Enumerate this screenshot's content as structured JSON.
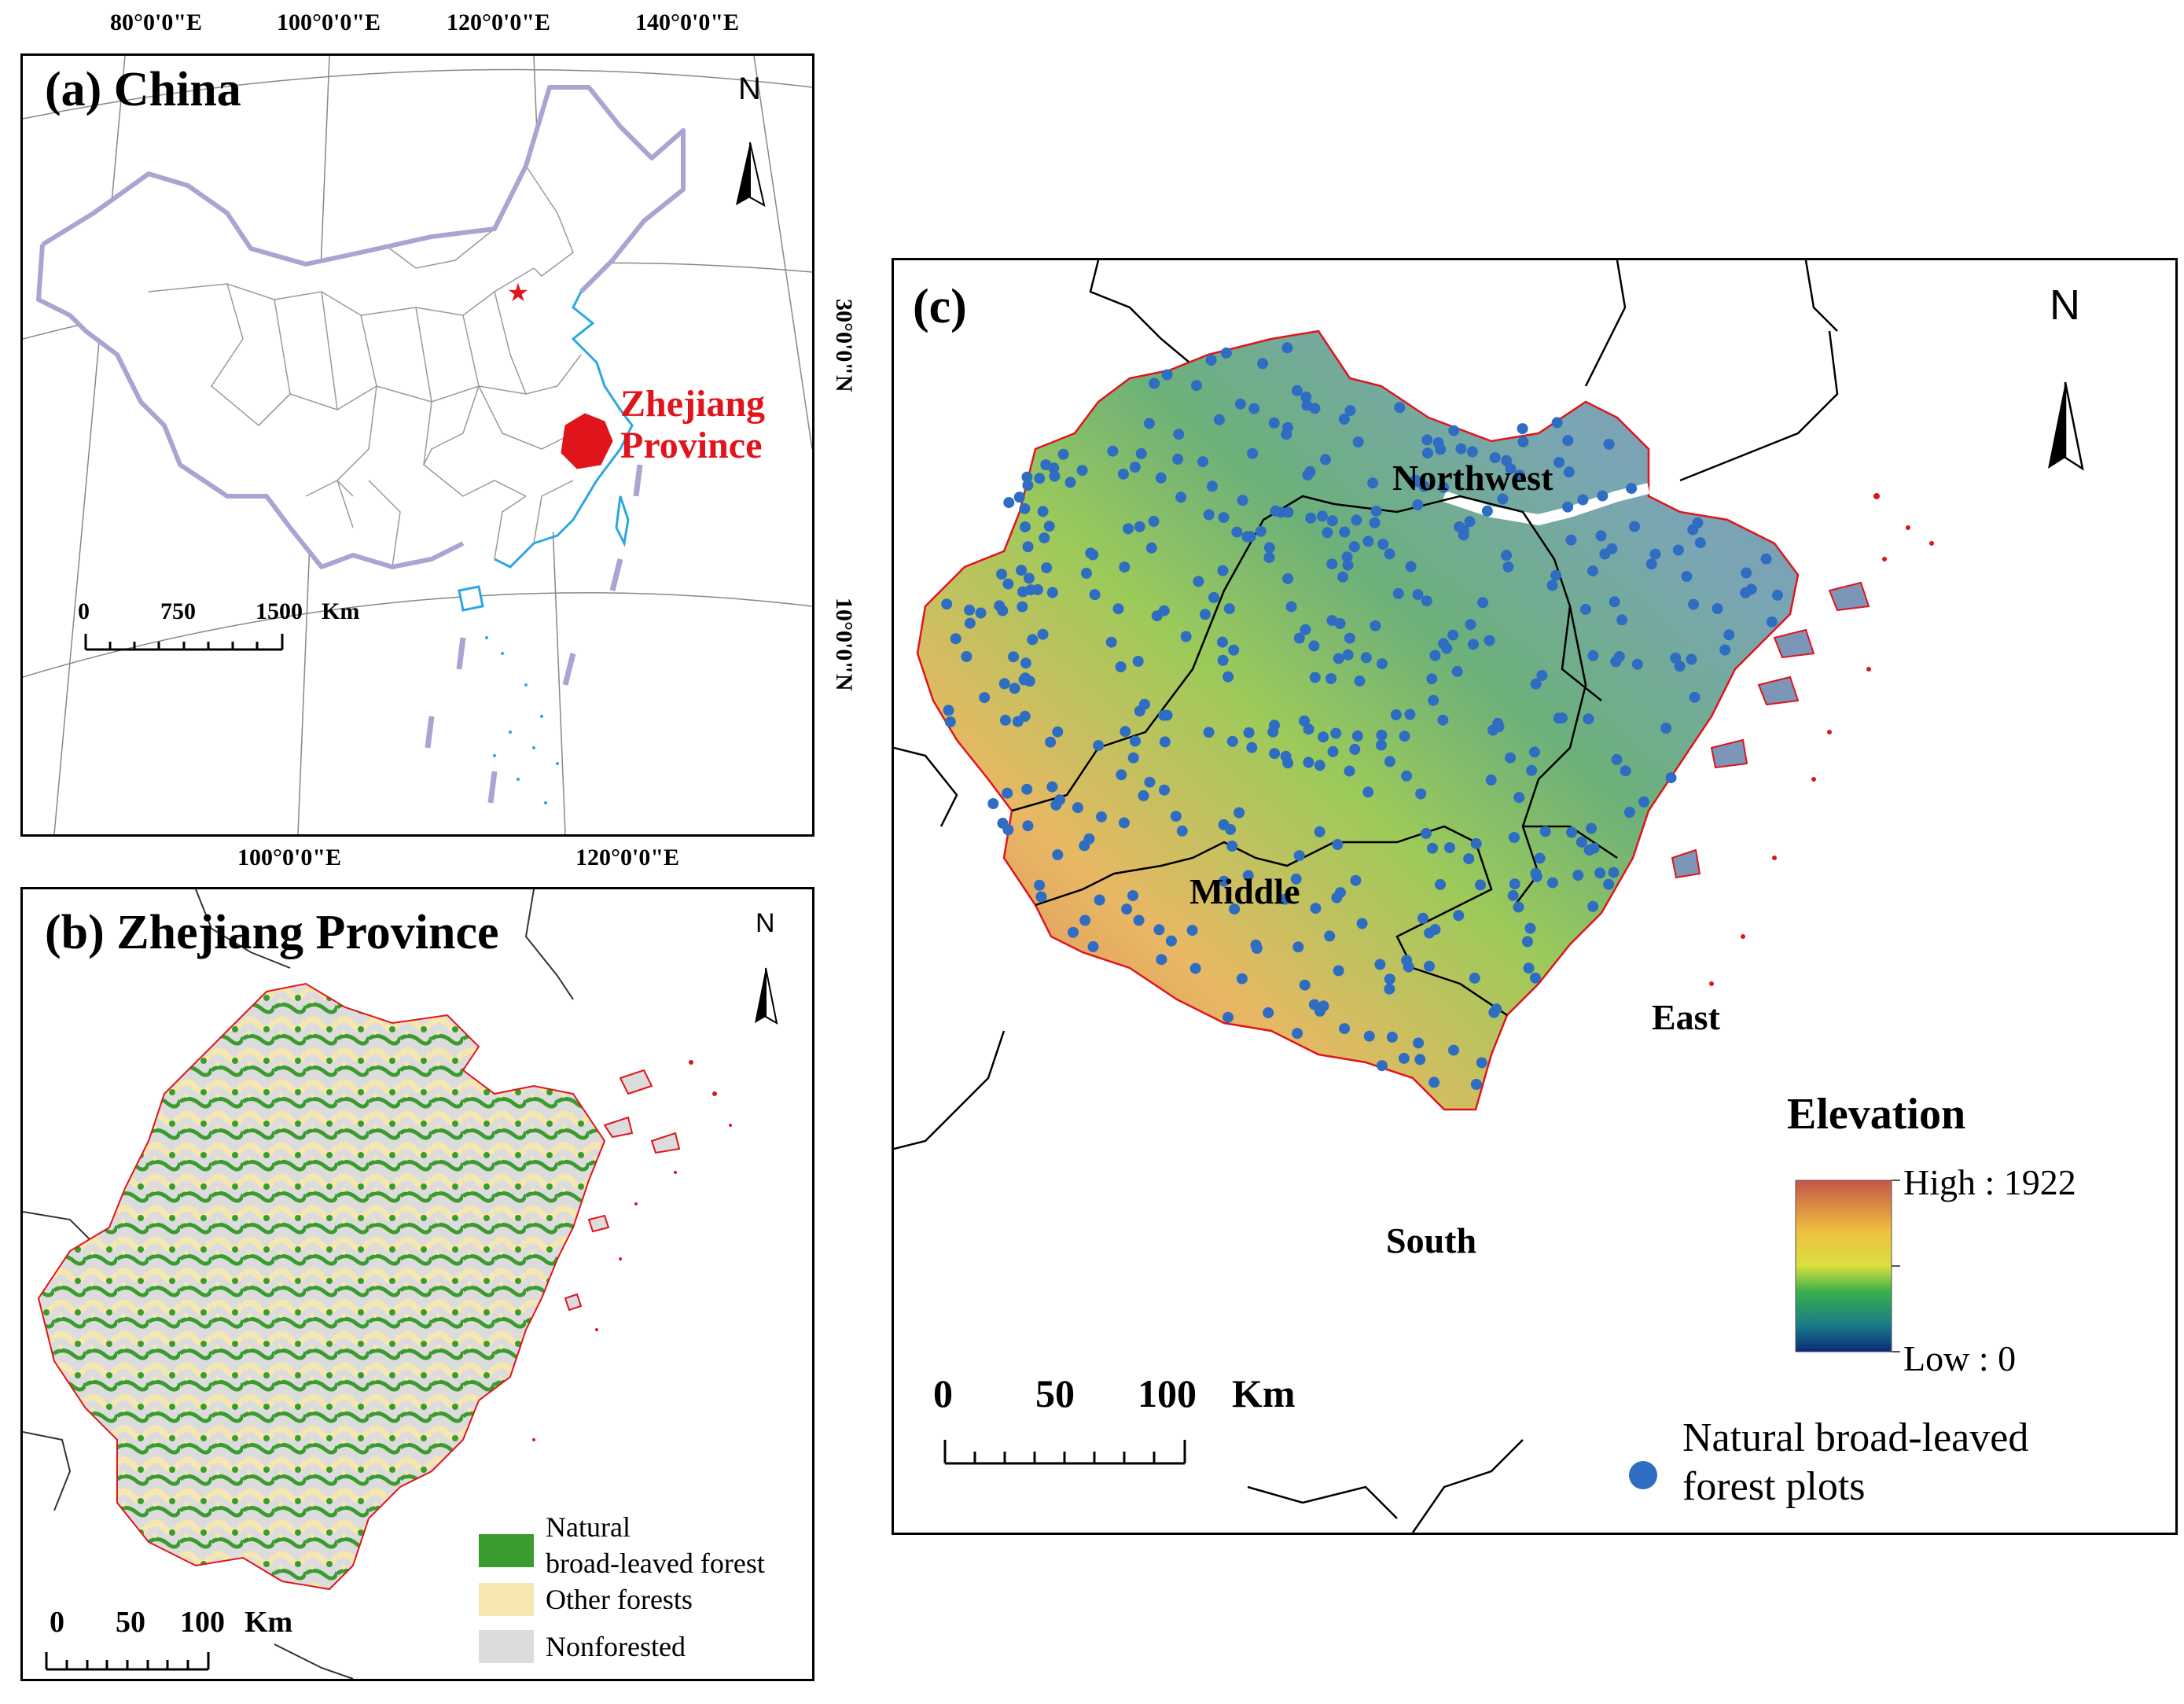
{
  "panel_a": {
    "title": "(a) China",
    "top_ticks": [
      "80°0'0\"E",
      "100°0'0\"E",
      "120°0'0\"E",
      "140°0'0\"E"
    ],
    "bottom_ticks": [
      "100°0'0\"E",
      "120°0'0\"E"
    ],
    "right_ticks": [
      "30°0'0\"N",
      "10°0'0\"N"
    ],
    "highlight_label_line1": "Zhejiang",
    "highlight_label_line2": "Province",
    "north": "N",
    "scale": {
      "labels": [
        "0",
        "750",
        "1500"
      ],
      "unit": "Km"
    },
    "colors": {
      "border": "#a8a5d3",
      "coast": "#2aa8e0",
      "highlight": "#e0141b"
    },
    "capital_icon": "star-icon"
  },
  "panel_b": {
    "title": "(b) Zhejiang Province",
    "north": "N",
    "scale": {
      "labels": [
        "0",
        "50",
        "100"
      ],
      "unit": "Km"
    },
    "legend": [
      {
        "label_line1": "Natural",
        "label_line2": "broad-leaved forest",
        "color": "#3a9c2e"
      },
      {
        "label_line1": "Other forests",
        "label_line2": "",
        "color": "#f6e7b0"
      },
      {
        "label_line1": "Nonforested",
        "label_line2": "",
        "color": "#dcdcdc"
      }
    ]
  },
  "panel_c": {
    "title": "(c)",
    "north": "N",
    "regions": [
      "Northwest",
      "Middle",
      "East",
      "South"
    ],
    "elevation": {
      "title": "Elevation",
      "high": "High : 1922",
      "low": "Low : 0"
    },
    "scale": {
      "labels": [
        "0",
        "50",
        "100"
      ],
      "unit": "Km"
    },
    "plots_legend_line1": "Natural broad-leaved",
    "plots_legend_line2": "forest plots",
    "plot_color": "#2e6dc1"
  }
}
